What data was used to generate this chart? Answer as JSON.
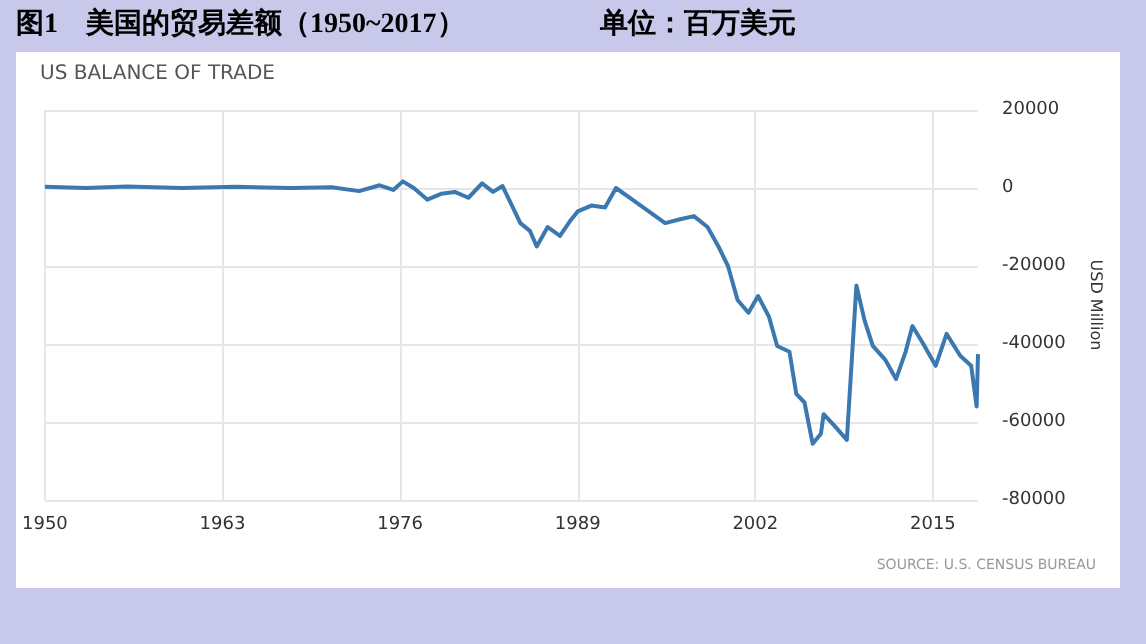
{
  "chart_data": {
    "type": "line",
    "title": "图1　美国的贸易差额（1950~2017）",
    "subtitle": "单位：百万美元",
    "ylabel": "USD Million",
    "annotations": [
      "US BALANCE OF TRADE",
      "SOURCE: U.S. CENSUS BUREAU"
    ],
    "x": [
      1950,
      1953,
      1956,
      1960,
      1964,
      1968,
      1971,
      1973,
      1974.5,
      1975.5,
      1976.2,
      1977,
      1978,
      1979,
      1980,
      1981,
      1982,
      1982.8,
      1983.5,
      1984.8,
      1985.5,
      1986,
      1986.8,
      1987.7,
      1988.5,
      1989,
      1990,
      1991,
      1991.8,
      1993,
      1995.4,
      1996.5,
      1997.5,
      1998.5,
      1999.3,
      2000,
      2000.7,
      2001.5,
      2002.2,
      2003,
      2003.6,
      2004.5,
      2005,
      2005.6,
      2006.2,
      2006.8,
      2007,
      2007.8,
      2008.7,
      2009.4,
      2010,
      2010.6,
      2011.5,
      2012.3,
      2013,
      2013.5,
      2014.3,
      2015.2,
      2016,
      2017,
      2017.8,
      2018.2,
      2018.3
    ],
    "series": [
      {
        "color": "#3b78b0",
        "values": [
          300,
          0,
          400,
          0,
          300,
          0,
          200,
          -800,
          700,
          -500,
          1700,
          0,
          -3000,
          -1500,
          -1000,
          -2500,
          1200,
          -1000,
          500,
          -9000,
          -11000,
          -15000,
          -10000,
          -12300,
          -8200,
          -6000,
          -4500,
          -5000,
          0,
          -3000,
          -9000,
          -8000,
          -7200,
          -10000,
          -15000,
          -20000,
          -28700,
          -32000,
          -27700,
          -33000,
          -40500,
          -42000,
          -52800,
          -55000,
          -65600,
          -63000,
          -58000,
          -61000,
          -64600,
          -25000,
          -34000,
          -40500,
          -44000,
          -49000,
          -42000,
          -35400,
          -40000,
          -45600,
          -37400,
          -43000,
          -45600,
          -56000,
          -42600
        ]
      }
    ],
    "xlim": [
      1950,
      2018.3
    ],
    "xticks": [
      1950,
      1963,
      1976,
      1989,
      2002,
      2015
    ],
    "ylim": [
      -80000,
      20000
    ],
    "yticks": [
      -80000,
      -60000,
      -40000,
      -20000,
      0,
      20000
    ],
    "grid": true,
    "marker": "none",
    "line_style": "solid"
  }
}
